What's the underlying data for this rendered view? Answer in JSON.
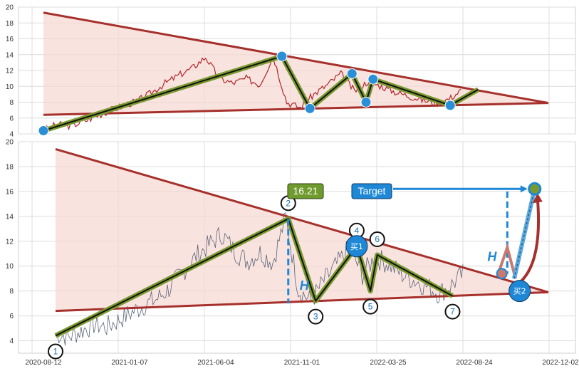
{
  "chart_data": [
    {
      "type": "line",
      "panel": "top",
      "ylim": [
        4,
        20
      ],
      "yticks": [
        4,
        6,
        8,
        10,
        12,
        14,
        16,
        18,
        20
      ],
      "grid": true,
      "series": [
        {
          "values": [
            4.4,
            5.2,
            5.0,
            5.6,
            6.3,
            7.0,
            7.6,
            8.2,
            9.2,
            10.4,
            11.4,
            12.3,
            13.7,
            11.0,
            10.4,
            11.0,
            10.2,
            13.8,
            8.0,
            7.3,
            9.0,
            10.2,
            11.6,
            9.4,
            10.6,
            10.0,
            9.3,
            8.8,
            8.3,
            7.9,
            8.4,
            9.6
          ]
        }
      ],
      "pattern_points": [
        {
          "t": 0,
          "y": 4.4
        },
        {
          "t": 17,
          "y": 13.8
        },
        {
          "t": 19,
          "y": 7.2
        },
        {
          "t": 22,
          "y": 11.6
        },
        {
          "t": 23,
          "y": 8.0
        },
        {
          "t": 23.5,
          "y": 10.9
        },
        {
          "t": 29,
          "y": 7.6
        },
        {
          "t": 31,
          "y": 9.6
        }
      ],
      "upper_trendline": [
        [
          0,
          19.3
        ],
        [
          36,
          7.9
        ]
      ],
      "lower_trendline": [
        [
          0,
          6.4
        ],
        [
          36,
          7.9
        ]
      ],
      "colors": {
        "price": "#b0262a",
        "trend": "#a6302b",
        "pattern": "#7a9a2f",
        "fill": "#f6d7d1",
        "marker": "#2a8fd6"
      }
    },
    {
      "type": "line",
      "panel": "bottom",
      "ylim": [
        3,
        20
      ],
      "yticks": [
        4,
        6,
        8,
        10,
        12,
        14,
        16,
        18,
        20
      ],
      "xticks": [
        "2020-08-12",
        "2021-01-07",
        "2021-06-04",
        "2021-11-01",
        "2022-03-25",
        "2022-08-24",
        "2022-12-02"
      ],
      "grid": true,
      "series": [
        {
          "values": [
            4.6,
            4.3,
            4.8,
            5.3,
            5.1,
            5.7,
            6.3,
            6.9,
            7.4,
            8.3,
            9.6,
            10.8,
            11.7,
            12.6,
            11.2,
            10.4,
            11.1,
            10.3,
            13.9,
            8.1,
            7.2,
            8.8,
            10.1,
            11.5,
            9.3,
            10.7,
            10.2,
            9.4,
            8.9,
            8.4,
            7.8,
            8.5,
            9.5
          ]
        }
      ],
      "pattern_points": [
        {
          "label": "1",
          "t": 0,
          "y": 4.4
        },
        {
          "label": "2",
          "t": 17,
          "y": 13.8
        },
        {
          "label": "3",
          "t": 19,
          "y": 7.2
        },
        {
          "label": "4",
          "t": 22,
          "y": 11.6
        },
        {
          "label": "5",
          "t": 23,
          "y": 8.0
        },
        {
          "label": "6",
          "t": 23.5,
          "y": 10.9
        },
        {
          "label": "7",
          "t": 29,
          "y": 7.6
        }
      ],
      "upper_trendline": [
        [
          0,
          19.4
        ],
        [
          36,
          7.9
        ]
      ],
      "lower_trendline": [
        [
          0,
          6.4
        ],
        [
          36,
          7.9
        ]
      ],
      "annotations": {
        "price_box": "16.21",
        "target_box": "Target",
        "h_left": "H",
        "h_right": "H",
        "buy1": "买1",
        "buy2": "买2",
        "target_value": 16.21
      },
      "colors": {
        "price": "#5a6478",
        "trend": "#a6302b",
        "pattern": "#7a9a2f",
        "fill": "#f6d7d1",
        "marker": "#2a8fd6",
        "target_box": "#1e88d6",
        "price_box": "#6f9a2d"
      }
    }
  ]
}
